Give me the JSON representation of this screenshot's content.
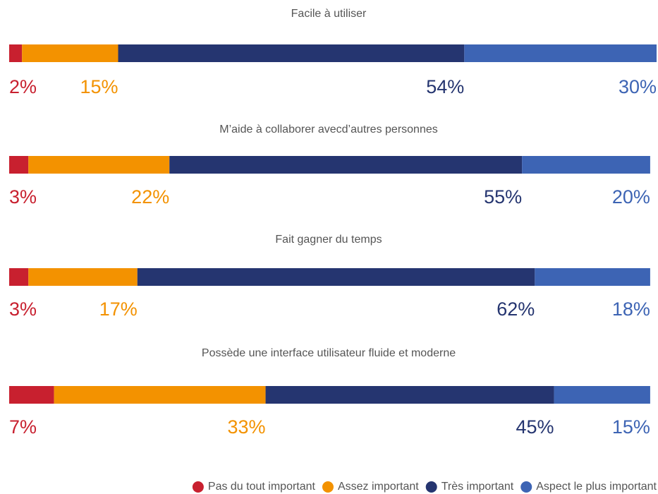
{
  "chart_data": {
    "type": "bar",
    "orientation": "horizontal",
    "stacked": true,
    "categories": [
      "Facile à utiliser",
      "M’aide à collaborer avecd’autres personnes",
      "Fait gagner du temps",
      "Possède une interface utilisateur fluide et moderne"
    ],
    "series": [
      {
        "name": "Pas du tout important",
        "color": "#c8202f",
        "values": [
          2,
          3,
          3,
          7
        ],
        "value_labels": [
          "2%",
          "3%",
          "3%",
          "7%"
        ]
      },
      {
        "name": "Assez important",
        "color": "#f39200",
        "values": [
          15,
          22,
          17,
          33
        ],
        "value_labels": [
          "15%",
          "22%",
          "17%",
          "33%"
        ]
      },
      {
        "name": "Très important",
        "color": "#253570",
        "values": [
          54,
          55,
          62,
          45
        ],
        "value_labels": [
          "54%",
          "55%",
          "62%",
          "45%"
        ]
      },
      {
        "name": "Aspect le plus important",
        "color": "#3d64b4",
        "values": [
          30,
          20,
          18,
          15
        ],
        "value_labels": [
          "30%",
          "20%",
          "18%",
          "15%"
        ]
      }
    ],
    "xlim": [
      0,
      101
    ],
    "legend": "bottom-right"
  }
}
